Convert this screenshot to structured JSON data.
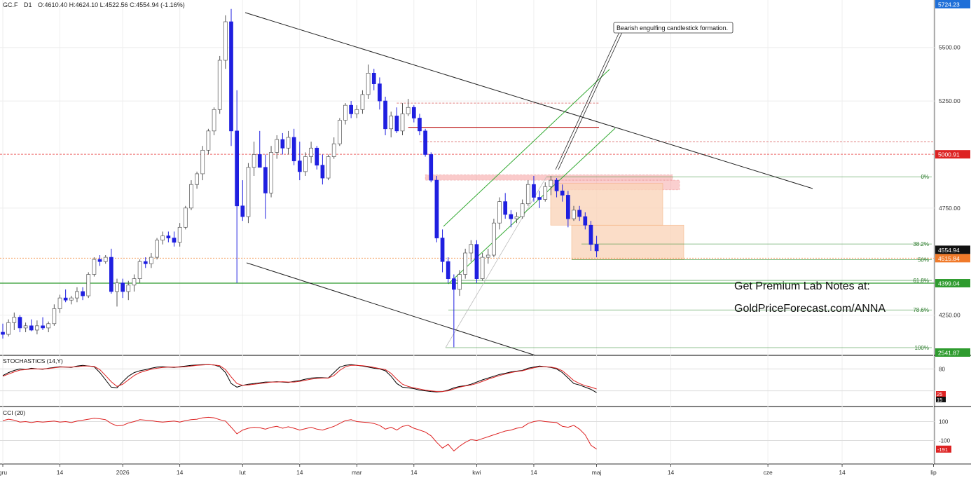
{
  "header": {
    "symbol": "GC.F",
    "interval": "D1",
    "ohlc": "O:4610.40  H:4624.10  L:4522.56  C:4554.94  (-1.16%)"
  },
  "colors": {
    "bull_candle": "#ffffff",
    "bear_candle": "#1f1fe0",
    "fib_line": "#2e8b2e",
    "resistance_line": "#cc2222",
    "support_line": "#2e9b2e",
    "stoch_k": "#000000",
    "stoch_d": "#dd2222",
    "cci": "#dd2222"
  },
  "annotations": {
    "callout": "Bearish engulfing candlestick formation.",
    "promo_line1": "Get Premium Lab Notes at:",
    "promo_line2": "GoldPriceForecast.com/ANNA"
  },
  "price_axis": {
    "ticks": [
      {
        "value": 5500,
        "label": "5500.00"
      },
      {
        "value": 5250,
        "label": "5250.00"
      },
      {
        "value": 4750,
        "label": "4750.00"
      },
      {
        "value": 4250,
        "label": "4250.00"
      }
    ],
    "badges": [
      {
        "value": 5724.23,
        "label": "5724.23",
        "color": "#1f6fd8"
      },
      {
        "value": 5000.91,
        "label": "5000.91",
        "color": "#dd2222"
      },
      {
        "value": 4554.94,
        "label": "4554.94",
        "color": "#111111"
      },
      {
        "value": 4515.84,
        "label": "4515.84",
        "color": "#f07a2a"
      },
      {
        "value": 4399.04,
        "label": "4399.04",
        "color": "#2e9b2e"
      },
      {
        "value": 4062,
        "label": "2541.87",
        "color": "#2e9b2e"
      }
    ]
  },
  "fib_levels": [
    {
      "label": "0%",
      "price": 4896
    },
    {
      "label": "38.2%",
      "price": 4582
    },
    {
      "label": "50%",
      "price": 4509
    },
    {
      "label": "61.8%",
      "price": 4412
    },
    {
      "label": "78.6%",
      "price": 4274
    },
    {
      "label": "100%",
      "price": 4098
    }
  ],
  "x_axis": {
    "labels": [
      {
        "label": "gru",
        "idx": 0
      },
      {
        "label": "14",
        "idx": 10
      },
      {
        "label": "2026",
        "idx": 21
      },
      {
        "label": "14",
        "idx": 31
      },
      {
        "label": "lut",
        "idx": 42
      },
      {
        "label": "14",
        "idx": 52
      },
      {
        "label": "mar",
        "idx": 62
      },
      {
        "label": "14",
        "idx": 72
      },
      {
        "label": "kwi",
        "idx": 83
      },
      {
        "label": "14",
        "idx": 93
      },
      {
        "label": "maj",
        "idx": 104
      },
      {
        "label": "14",
        "idx": 117
      },
      {
        "label": "cze",
        "idx": 134
      },
      {
        "label": "14",
        "idx": 147
      },
      {
        "label": "lip",
        "idx": 163
      }
    ]
  },
  "stochastics": {
    "title": "STOCHASTICS (14,Y)",
    "ticks": [
      {
        "value": 80,
        "label": "80"
      }
    ],
    "badges": [
      {
        "value": 25,
        "label": "25",
        "color": "#dd2222"
      },
      {
        "value": 15,
        "label": "15",
        "color": "#111111"
      }
    ]
  },
  "cci": {
    "title": "CCI (20)",
    "ticks": [
      {
        "value": 100,
        "label": "100"
      },
      {
        "value": -100,
        "label": "-100"
      }
    ],
    "badges": [
      {
        "value": -191,
        "label": "-191",
        "color": "#dd2222"
      }
    ]
  },
  "chart_data": {
    "type": "candlestick",
    "title": "GC.F D1",
    "ylim": [
      4062,
      5724.23
    ],
    "candles": [
      {
        "o": 4170,
        "h": 4210,
        "l": 4140,
        "c": 4160
      },
      {
        "o": 4160,
        "h": 4230,
        "l": 4150,
        "c": 4215
      },
      {
        "o": 4215,
        "h": 4262,
        "l": 4180,
        "c": 4240
      },
      {
        "o": 4240,
        "h": 4250,
        "l": 4170,
        "c": 4190
      },
      {
        "o": 4190,
        "h": 4215,
        "l": 4170,
        "c": 4200
      },
      {
        "o": 4200,
        "h": 4230,
        "l": 4175,
        "c": 4180
      },
      {
        "o": 4180,
        "h": 4225,
        "l": 4160,
        "c": 4200
      },
      {
        "o": 4200,
        "h": 4240,
        "l": 4180,
        "c": 4190
      },
      {
        "o": 4190,
        "h": 4220,
        "l": 4170,
        "c": 4210
      },
      {
        "o": 4210,
        "h": 4300,
        "l": 4200,
        "c": 4280
      },
      {
        "o": 4280,
        "h": 4345,
        "l": 4260,
        "c": 4330
      },
      {
        "o": 4330,
        "h": 4370,
        "l": 4310,
        "c": 4320
      },
      {
        "o": 4320,
        "h": 4340,
        "l": 4300,
        "c": 4330
      },
      {
        "o": 4330,
        "h": 4380,
        "l": 4310,
        "c": 4360
      },
      {
        "o": 4360,
        "h": 4380,
        "l": 4320,
        "c": 4340
      },
      {
        "o": 4340,
        "h": 4450,
        "l": 4330,
        "c": 4440
      },
      {
        "o": 4440,
        "h": 4520,
        "l": 4430,
        "c": 4510
      },
      {
        "o": 4510,
        "h": 4530,
        "l": 4480,
        "c": 4500
      },
      {
        "o": 4500,
        "h": 4530,
        "l": 4490,
        "c": 4520
      },
      {
        "o": 4520,
        "h": 4560,
        "l": 4350,
        "c": 4360
      },
      {
        "o": 4360,
        "h": 4420,
        "l": 4290,
        "c": 4400
      },
      {
        "o": 4400,
        "h": 4420,
        "l": 4330,
        "c": 4360
      },
      {
        "o": 4360,
        "h": 4410,
        "l": 4320,
        "c": 4390
      },
      {
        "o": 4390,
        "h": 4440,
        "l": 4360,
        "c": 4420
      },
      {
        "o": 4420,
        "h": 4510,
        "l": 4400,
        "c": 4500
      },
      {
        "o": 4500,
        "h": 4520,
        "l": 4470,
        "c": 4490
      },
      {
        "o": 4490,
        "h": 4540,
        "l": 4470,
        "c": 4520
      },
      {
        "o": 4520,
        "h": 4610,
        "l": 4510,
        "c": 4600
      },
      {
        "o": 4600,
        "h": 4640,
        "l": 4580,
        "c": 4620
      },
      {
        "o": 4620,
        "h": 4640,
        "l": 4590,
        "c": 4610
      },
      {
        "o": 4610,
        "h": 4640,
        "l": 4570,
        "c": 4590
      },
      {
        "o": 4590,
        "h": 4680,
        "l": 4570,
        "c": 4660
      },
      {
        "o": 4660,
        "h": 4760,
        "l": 4650,
        "c": 4750
      },
      {
        "o": 4750,
        "h": 4880,
        "l": 4740,
        "c": 4860
      },
      {
        "o": 4860,
        "h": 4920,
        "l": 4840,
        "c": 4910
      },
      {
        "o": 4910,
        "h": 5040,
        "l": 4880,
        "c": 5020
      },
      {
        "o": 5020,
        "h": 5120,
        "l": 5000,
        "c": 5110
      },
      {
        "o": 5110,
        "h": 5220,
        "l": 5090,
        "c": 5210
      },
      {
        "o": 5210,
        "h": 5460,
        "l": 5190,
        "c": 5440
      },
      {
        "o": 5440,
        "h": 5650,
        "l": 5400,
        "c": 5620
      },
      {
        "o": 5620,
        "h": 5680,
        "l": 5040,
        "c": 5110
      },
      {
        "o": 5110,
        "h": 5300,
        "l": 4400,
        "c": 4760
      },
      {
        "o": 4760,
        "h": 4880,
        "l": 4690,
        "c": 4710
      },
      {
        "o": 4710,
        "h": 4960,
        "l": 4680,
        "c": 4940
      },
      {
        "o": 4940,
        "h": 5060,
        "l": 4900,
        "c": 5000
      },
      {
        "o": 5000,
        "h": 5110,
        "l": 4950,
        "c": 4940
      },
      {
        "o": 4940,
        "h": 5000,
        "l": 4700,
        "c": 4820
      },
      {
        "o": 4820,
        "h": 5040,
        "l": 4800,
        "c": 5010
      },
      {
        "o": 5010,
        "h": 5090,
        "l": 4980,
        "c": 5070
      },
      {
        "o": 5070,
        "h": 5100,
        "l": 5000,
        "c": 5030
      },
      {
        "o": 5030,
        "h": 5110,
        "l": 5000,
        "c": 5080
      },
      {
        "o": 5080,
        "h": 5120,
        "l": 4950,
        "c": 4970
      },
      {
        "o": 4970,
        "h": 5060,
        "l": 4880,
        "c": 4920
      },
      {
        "o": 4920,
        "h": 5010,
        "l": 4900,
        "c": 4990
      },
      {
        "o": 4990,
        "h": 5060,
        "l": 4960,
        "c": 5030
      },
      {
        "o": 5030,
        "h": 5040,
        "l": 4930,
        "c": 4950
      },
      {
        "o": 4950,
        "h": 5000,
        "l": 4860,
        "c": 4890
      },
      {
        "o": 4890,
        "h": 5000,
        "l": 4880,
        "c": 4990
      },
      {
        "o": 4990,
        "h": 5080,
        "l": 4980,
        "c": 5050
      },
      {
        "o": 5050,
        "h": 5170,
        "l": 5040,
        "c": 5160
      },
      {
        "o": 5160,
        "h": 5240,
        "l": 5140,
        "c": 5230
      },
      {
        "o": 5230,
        "h": 5250,
        "l": 5170,
        "c": 5190
      },
      {
        "o": 5190,
        "h": 5230,
        "l": 5170,
        "c": 5210
      },
      {
        "o": 5210,
        "h": 5300,
        "l": 5190,
        "c": 5280
      },
      {
        "o": 5280,
        "h": 5420,
        "l": 5260,
        "c": 5380
      },
      {
        "o": 5380,
        "h": 5400,
        "l": 5300,
        "c": 5330
      },
      {
        "o": 5330,
        "h": 5360,
        "l": 5210,
        "c": 5250
      },
      {
        "o": 5250,
        "h": 5270,
        "l": 5090,
        "c": 5120
      },
      {
        "o": 5120,
        "h": 5200,
        "l": 5080,
        "c": 5180
      },
      {
        "o": 5180,
        "h": 5220,
        "l": 5100,
        "c": 5110
      },
      {
        "o": 5110,
        "h": 5240,
        "l": 5090,
        "c": 5190
      },
      {
        "o": 5190,
        "h": 5260,
        "l": 5180,
        "c": 5220
      },
      {
        "o": 5220,
        "h": 5230,
        "l": 5150,
        "c": 5170
      },
      {
        "o": 5170,
        "h": 5190,
        "l": 5090,
        "c": 5110
      },
      {
        "o": 5110,
        "h": 5120,
        "l": 4990,
        "c": 5000
      },
      {
        "o": 5000,
        "h": 5010,
        "l": 4870,
        "c": 4880
      },
      {
        "o": 4880,
        "h": 4900,
        "l": 4590,
        "c": 4610
      },
      {
        "o": 4610,
        "h": 4650,
        "l": 4450,
        "c": 4500
      },
      {
        "o": 4500,
        "h": 4520,
        "l": 4400,
        "c": 4420
      },
      {
        "o": 4420,
        "h": 4440,
        "l": 4100,
        "c": 4370
      },
      {
        "o": 4370,
        "h": 4460,
        "l": 4340,
        "c": 4440
      },
      {
        "o": 4440,
        "h": 4560,
        "l": 4420,
        "c": 4540
      },
      {
        "o": 4540,
        "h": 4600,
        "l": 4500,
        "c": 4580
      },
      {
        "o": 4580,
        "h": 4600,
        "l": 4400,
        "c": 4420
      },
      {
        "o": 4420,
        "h": 4540,
        "l": 4410,
        "c": 4520
      },
      {
        "o": 4520,
        "h": 4560,
        "l": 4490,
        "c": 4530
      },
      {
        "o": 4530,
        "h": 4700,
        "l": 4520,
        "c": 4680
      },
      {
        "o": 4680,
        "h": 4800,
        "l": 4650,
        "c": 4780
      },
      {
        "o": 4780,
        "h": 4820,
        "l": 4700,
        "c": 4720
      },
      {
        "o": 4720,
        "h": 4740,
        "l": 4660,
        "c": 4700
      },
      {
        "o": 4700,
        "h": 4730,
        "l": 4680,
        "c": 4710
      },
      {
        "o": 4710,
        "h": 4790,
        "l": 4700,
        "c": 4770
      },
      {
        "o": 4770,
        "h": 4880,
        "l": 4760,
        "c": 4860
      },
      {
        "o": 4860,
        "h": 4900,
        "l": 4780,
        "c": 4800
      },
      {
        "o": 4800,
        "h": 4830,
        "l": 4750,
        "c": 4790
      },
      {
        "o": 4790,
        "h": 4870,
        "l": 4780,
        "c": 4850
      },
      {
        "o": 4850,
        "h": 4900,
        "l": 4810,
        "c": 4880
      },
      {
        "o": 4880,
        "h": 4890,
        "l": 4800,
        "c": 4830
      },
      {
        "o": 4830,
        "h": 4860,
        "l": 4780,
        "c": 4810
      },
      {
        "o": 4810,
        "h": 4830,
        "l": 4660,
        "c": 4700
      },
      {
        "o": 4700,
        "h": 4760,
        "l": 4690,
        "c": 4740
      },
      {
        "o": 4740,
        "h": 4760,
        "l": 4690,
        "c": 4710
      },
      {
        "o": 4710,
        "h": 4730,
        "l": 4650,
        "c": 4670
      },
      {
        "o": 4670,
        "h": 4690,
        "l": 4550,
        "c": 4580
      },
      {
        "o": 4580,
        "h": 4620,
        "l": 4520,
        "c": 4550
      }
    ],
    "stochastic_k": [
      62,
      70,
      76,
      80,
      78,
      82,
      80,
      79,
      82,
      84,
      86,
      85,
      84,
      88,
      90,
      88,
      86,
      70,
      50,
      30,
      28,
      45,
      60,
      70,
      75,
      78,
      82,
      85,
      86,
      85,
      84,
      86,
      88,
      90,
      91,
      92,
      92,
      91,
      86,
      70,
      40,
      30,
      35,
      38,
      40,
      42,
      44,
      44,
      45,
      44,
      43,
      46,
      48,
      52,
      55,
      56,
      56,
      55,
      70,
      85,
      90,
      92,
      90,
      88,
      85,
      82,
      80,
      75,
      60,
      40,
      30,
      28,
      26,
      22,
      20,
      18,
      17,
      18,
      22,
      28,
      32,
      34,
      38,
      44,
      50,
      55,
      60,
      65,
      68,
      72,
      74,
      76,
      82,
      85,
      88,
      86,
      84,
      80,
      70,
      55,
      40,
      36,
      30,
      24,
      15
    ],
    "stochastic_d": [
      60,
      66,
      72,
      77,
      78,
      80,
      80,
      80,
      81,
      83,
      85,
      85,
      85,
      86,
      88,
      88,
      87,
      78,
      62,
      45,
      32,
      38,
      50,
      62,
      70,
      75,
      79,
      82,
      84,
      85,
      85,
      85,
      86,
      88,
      90,
      91,
      92,
      91,
      89,
      78,
      58,
      40,
      35,
      36,
      38,
      40,
      42,
      44,
      44,
      45,
      44,
      44,
      46,
      49,
      52,
      54,
      55,
      55,
      62,
      76,
      86,
      90,
      90,
      89,
      87,
      84,
      81,
      78,
      68,
      52,
      38,
      32,
      28,
      25,
      22,
      20,
      18,
      18,
      20,
      25,
      30,
      33,
      36,
      40,
      46,
      52,
      57,
      62,
      66,
      70,
      73,
      75,
      79,
      83,
      86,
      86,
      85,
      82,
      75,
      62,
      48,
      40,
      34,
      30,
      25
    ],
    "cci": [
      110,
      125,
      115,
      95,
      100,
      90,
      100,
      95,
      100,
      105,
      95,
      100,
      90,
      105,
      115,
      125,
      135,
      130,
      120,
      80,
      55,
      60,
      85,
      100,
      120,
      115,
      110,
      100,
      95,
      100,
      105,
      95,
      110,
      120,
      125,
      140,
      145,
      140,
      120,
      105,
      40,
      -30,
      10,
      30,
      40,
      35,
      20,
      40,
      50,
      30,
      45,
      30,
      10,
      25,
      40,
      20,
      10,
      30,
      50,
      80,
      110,
      120,
      100,
      95,
      90,
      80,
      60,
      20,
      40,
      10,
      50,
      60,
      30,
      10,
      -10,
      -50,
      -120,
      -180,
      -140,
      -210,
      -160,
      -120,
      -90,
      -100,
      -80,
      -60,
      -40,
      -20,
      0,
      10,
      30,
      40,
      80,
      100,
      110,
      100,
      95,
      90,
      50,
      40,
      60,
      20,
      -40,
      -150,
      -191
    ]
  }
}
